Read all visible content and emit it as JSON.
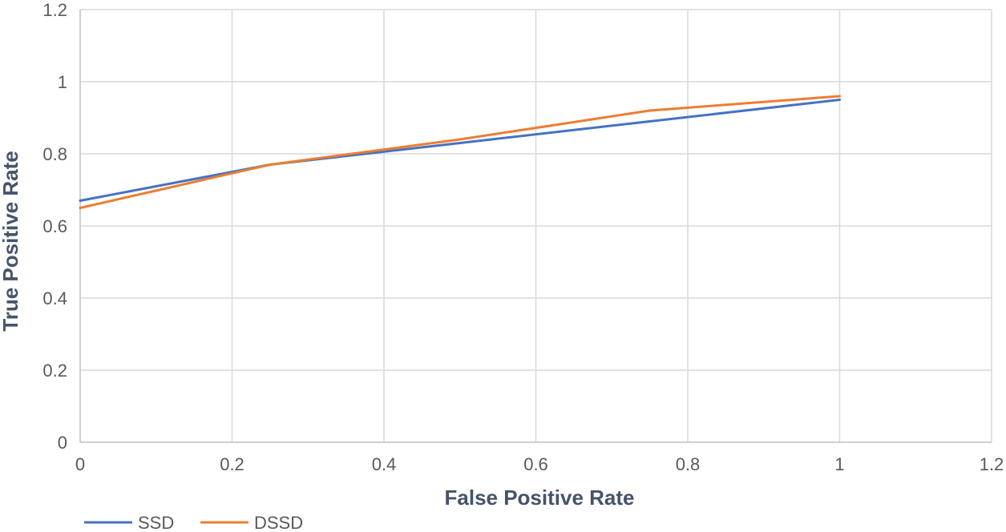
{
  "chart_data": {
    "type": "line",
    "title": "",
    "xlabel": "False Positive Rate",
    "ylabel": "True Positive Rate",
    "xlim": [
      0,
      1.2
    ],
    "ylim": [
      0,
      1.2
    ],
    "x_ticks": [
      "0",
      "0.2",
      "0.4",
      "0.6",
      "0.8",
      "1",
      "1.2"
    ],
    "y_ticks": [
      "0",
      "0.2",
      "0.4",
      "0.6",
      "0.8",
      "1",
      "1.2"
    ],
    "grid": true,
    "legend_position": "bottom-left",
    "series": [
      {
        "name": "SSD",
        "color": "#4472c4",
        "points": [
          {
            "x": 0,
            "y": 0.67
          },
          {
            "x": 0.25,
            "y": 0.77
          },
          {
            "x": 0.5,
            "y": 0.83
          },
          {
            "x": 0.75,
            "y": 0.89
          },
          {
            "x": 1,
            "y": 0.95
          }
        ]
      },
      {
        "name": "DSSD",
        "color": "#ed7d31",
        "points": [
          {
            "x": 0,
            "y": 0.65
          },
          {
            "x": 0.25,
            "y": 0.77
          },
          {
            "x": 0.5,
            "y": 0.84
          },
          {
            "x": 0.75,
            "y": 0.92
          },
          {
            "x": 1,
            "y": 0.96
          }
        ]
      }
    ]
  }
}
